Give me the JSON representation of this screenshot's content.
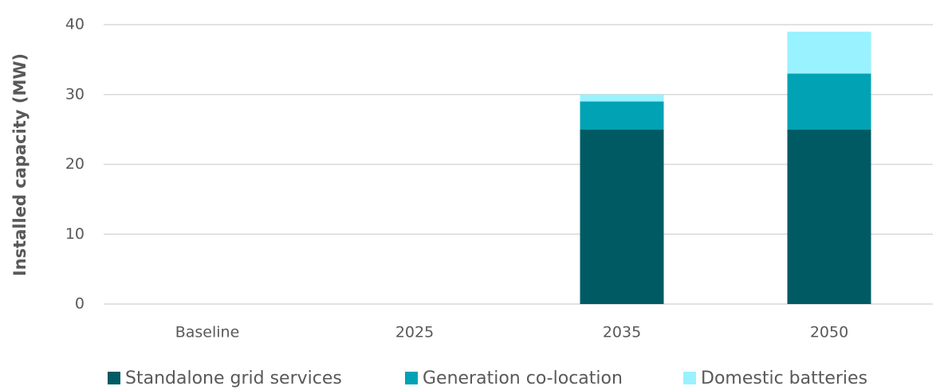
{
  "chart_data": {
    "type": "stacked_bar",
    "y_label": "Installed capacity (MW)",
    "categories": [
      "Baseline",
      "2025",
      "2035",
      "2050"
    ],
    "series": [
      {
        "name": "Standalone grid services",
        "color": "#005a64",
        "values": [
          0,
          0,
          25,
          25
        ]
      },
      {
        "name": "Generation co-location",
        "color": "#00a2b4",
        "values": [
          0,
          0,
          4,
          8
        ]
      },
      {
        "name": "Domestic batteries",
        "color": "#99f2ff",
        "values": [
          0,
          0,
          1,
          6
        ]
      }
    ],
    "ylim": [
      0,
      40
    ],
    "yticks": [
      0,
      10,
      20,
      30,
      40
    ],
    "grid": true,
    "legend": "bottom"
  }
}
